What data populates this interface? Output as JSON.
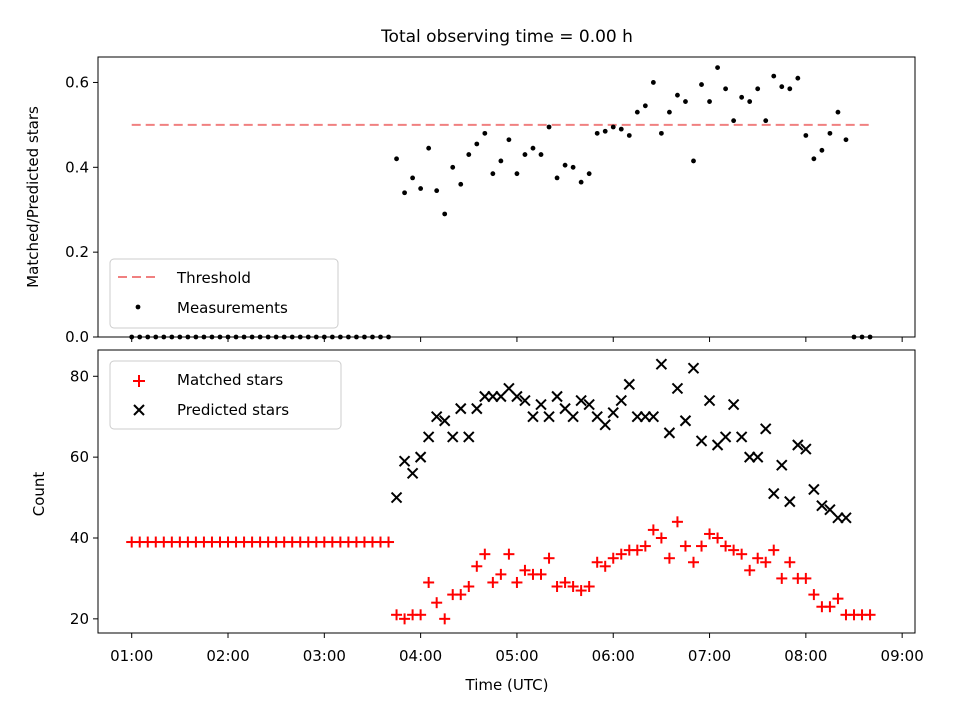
{
  "chart_data": [
    {
      "type": "scatter",
      "title": "Total observing time = 0.00 h",
      "ylabel": "Matched/Predicted stars",
      "xlabel": "",
      "xlim": [
        "00:39",
        "09:08"
      ],
      "ylim": [
        0,
        0.66
      ],
      "yticks": [
        0.0,
        0.2,
        0.4,
        0.6
      ],
      "ytick_labels": [
        "0.0",
        "0.2",
        "0.4",
        "0.6"
      ],
      "xticks": [
        "01:00",
        "02:00",
        "03:00",
        "04:00",
        "05:00",
        "06:00",
        "07:00",
        "08:00",
        "09:00"
      ],
      "legend": "lower-left",
      "threshold": {
        "name": "Threshold",
        "value": 0.5,
        "x_range": [
          "01:00",
          "08:40"
        ],
        "color": "#f08080"
      },
      "series": [
        {
          "name": "Measurements",
          "color": "#000000",
          "marker": "dot",
          "x": [
            "01:00",
            "01:05",
            "01:10",
            "01:15",
            "01:20",
            "01:25",
            "01:30",
            "01:35",
            "01:40",
            "01:45",
            "01:50",
            "01:55",
            "02:00",
            "02:05",
            "02:10",
            "02:15",
            "02:20",
            "02:25",
            "02:30",
            "02:35",
            "02:40",
            "02:45",
            "02:50",
            "02:55",
            "03:00",
            "03:05",
            "03:10",
            "03:15",
            "03:20",
            "03:25",
            "03:30",
            "03:35",
            "03:40",
            "03:45",
            "03:50",
            "03:55",
            "04:00",
            "04:05",
            "04:10",
            "04:15",
            "04:20",
            "04:25",
            "04:30",
            "04:35",
            "04:40",
            "04:45",
            "04:50",
            "04:55",
            "05:00",
            "05:05",
            "05:10",
            "05:15",
            "05:20",
            "05:25",
            "05:30",
            "05:35",
            "05:40",
            "05:45",
            "05:50",
            "05:55",
            "06:00",
            "06:05",
            "06:10",
            "06:15",
            "06:20",
            "06:25",
            "06:30",
            "06:35",
            "06:40",
            "06:45",
            "06:50",
            "06:55",
            "07:00",
            "07:05",
            "07:10",
            "07:15",
            "07:20",
            "07:25",
            "07:30",
            "07:35",
            "07:40",
            "07:45",
            "07:50",
            "07:55",
            "08:00",
            "08:05",
            "08:10",
            "08:15",
            "08:20",
            "08:25",
            "08:30",
            "08:35",
            "08:40"
          ],
          "y": [
            0,
            0,
            0,
            0,
            0,
            0,
            0,
            0,
            0,
            0,
            0,
            0,
            0,
            0,
            0,
            0,
            0,
            0,
            0,
            0,
            0,
            0,
            0,
            0,
            0,
            0,
            0,
            0,
            0,
            0,
            0,
            0,
            0,
            0.42,
            0.34,
            0.375,
            0.35,
            0.445,
            0.345,
            0.29,
            0.4,
            0.36,
            0.43,
            0.455,
            0.48,
            0.385,
            0.415,
            0.465,
            0.385,
            0.43,
            0.445,
            0.43,
            0.495,
            0.375,
            0.405,
            0.4,
            0.365,
            0.385,
            0.48,
            0.485,
            0.495,
            0.49,
            0.475,
            0.53,
            0.545,
            0.6,
            0.48,
            0.53,
            0.57,
            0.555,
            0.415,
            0.595,
            0.555,
            0.635,
            0.585,
            0.51,
            0.565,
            0.555,
            0.585,
            0.51,
            0.615,
            0.59,
            0.585,
            0.61,
            0.475,
            0.42,
            0.44,
            0.48,
            0.53,
            0.465,
            0,
            0,
            0
          ]
        }
      ]
    },
    {
      "type": "scatter",
      "title": "",
      "ylabel": "Count",
      "xlabel": "Time (UTC)",
      "xlim": [
        "00:39",
        "09:08"
      ],
      "ylim": [
        16.5,
        86.5
      ],
      "yticks": [
        20,
        40,
        60,
        80
      ],
      "ytick_labels": [
        "20",
        "40",
        "60",
        "80"
      ],
      "xticks": [
        "01:00",
        "02:00",
        "03:00",
        "04:00",
        "05:00",
        "06:00",
        "07:00",
        "08:00",
        "09:00"
      ],
      "xtick_labels": [
        "01:00",
        "02:00",
        "03:00",
        "04:00",
        "05:00",
        "06:00",
        "07:00",
        "08:00",
        "09:00"
      ],
      "legend": "top-left",
      "series": [
        {
          "name": "Matched stars",
          "color": "#ff0000",
          "marker": "plus",
          "x": [
            "01:00",
            "01:05",
            "01:10",
            "01:15",
            "01:20",
            "01:25",
            "01:30",
            "01:35",
            "01:40",
            "01:45",
            "01:50",
            "01:55",
            "02:00",
            "02:05",
            "02:10",
            "02:15",
            "02:20",
            "02:25",
            "02:30",
            "02:35",
            "02:40",
            "02:45",
            "02:50",
            "02:55",
            "03:00",
            "03:05",
            "03:10",
            "03:15",
            "03:20",
            "03:25",
            "03:30",
            "03:35",
            "03:40",
            "03:45",
            "03:50",
            "03:55",
            "04:00",
            "04:05",
            "04:10",
            "04:15",
            "04:20",
            "04:25",
            "04:30",
            "04:35",
            "04:40",
            "04:45",
            "04:50",
            "04:55",
            "05:00",
            "05:05",
            "05:10",
            "05:15",
            "05:20",
            "05:25",
            "05:30",
            "05:35",
            "05:40",
            "05:45",
            "05:50",
            "05:55",
            "06:00",
            "06:05",
            "06:10",
            "06:15",
            "06:20",
            "06:25",
            "06:30",
            "06:35",
            "06:40",
            "06:45",
            "06:50",
            "06:55",
            "07:00",
            "07:05",
            "07:10",
            "07:15",
            "07:20",
            "07:25",
            "07:30",
            "07:35",
            "07:40",
            "07:45",
            "07:50",
            "07:55",
            "08:00",
            "08:05",
            "08:10",
            "08:15",
            "08:20",
            "08:25",
            "08:30",
            "08:35",
            "08:40"
          ],
          "y": [
            39,
            39,
            39,
            39,
            39,
            39,
            39,
            39,
            39,
            39,
            39,
            39,
            39,
            39,
            39,
            39,
            39,
            39,
            39,
            39,
            39,
            39,
            39,
            39,
            39,
            39,
            39,
            39,
            39,
            39,
            39,
            39,
            39,
            21,
            20,
            21,
            21,
            29,
            24,
            20,
            26,
            26,
            28,
            33,
            36,
            29,
            31,
            36,
            29,
            32,
            31,
            31,
            35,
            28,
            29,
            28,
            27,
            28,
            34,
            33,
            35,
            36,
            37,
            37,
            38,
            42,
            40,
            35,
            44,
            38,
            34,
            38,
            41,
            40,
            38,
            37,
            36,
            32,
            35,
            34,
            37,
            30,
            34,
            30,
            30,
            26,
            23,
            23,
            25,
            21,
            21,
            21,
            21
          ]
        },
        {
          "name": "Predicted stars",
          "color": "#000000",
          "marker": "x",
          "x": [
            "03:45",
            "03:50",
            "03:55",
            "04:00",
            "04:05",
            "04:10",
            "04:15",
            "04:20",
            "04:25",
            "04:30",
            "04:35",
            "04:40",
            "04:45",
            "04:50",
            "04:55",
            "05:00",
            "05:05",
            "05:10",
            "05:15",
            "05:20",
            "05:25",
            "05:30",
            "05:35",
            "05:40",
            "05:45",
            "05:50",
            "05:55",
            "06:00",
            "06:05",
            "06:10",
            "06:15",
            "06:20",
            "06:25",
            "06:30",
            "06:35",
            "06:40",
            "06:45",
            "06:50",
            "06:55",
            "07:00",
            "07:05",
            "07:10",
            "07:15",
            "07:20",
            "07:25",
            "07:30",
            "07:35",
            "07:40",
            "07:45",
            "07:50",
            "07:55",
            "08:00",
            "08:05",
            "08:10",
            "08:15",
            "08:20",
            "08:25"
          ],
          "y": [
            50,
            59,
            56,
            60,
            65,
            70,
            69,
            65,
            72,
            65,
            72,
            75,
            75,
            75,
            77,
            75,
            74,
            70,
            73,
            70,
            75,
            72,
            70,
            74,
            73,
            70,
            68,
            71,
            74,
            78,
            70,
            70,
            70,
            83,
            66,
            77,
            69,
            82,
            64,
            74,
            63,
            65,
            73,
            65,
            60,
            60,
            67,
            51,
            58,
            49,
            63,
            62,
            52,
            48,
            47,
            45,
            45
          ]
        }
      ]
    }
  ]
}
